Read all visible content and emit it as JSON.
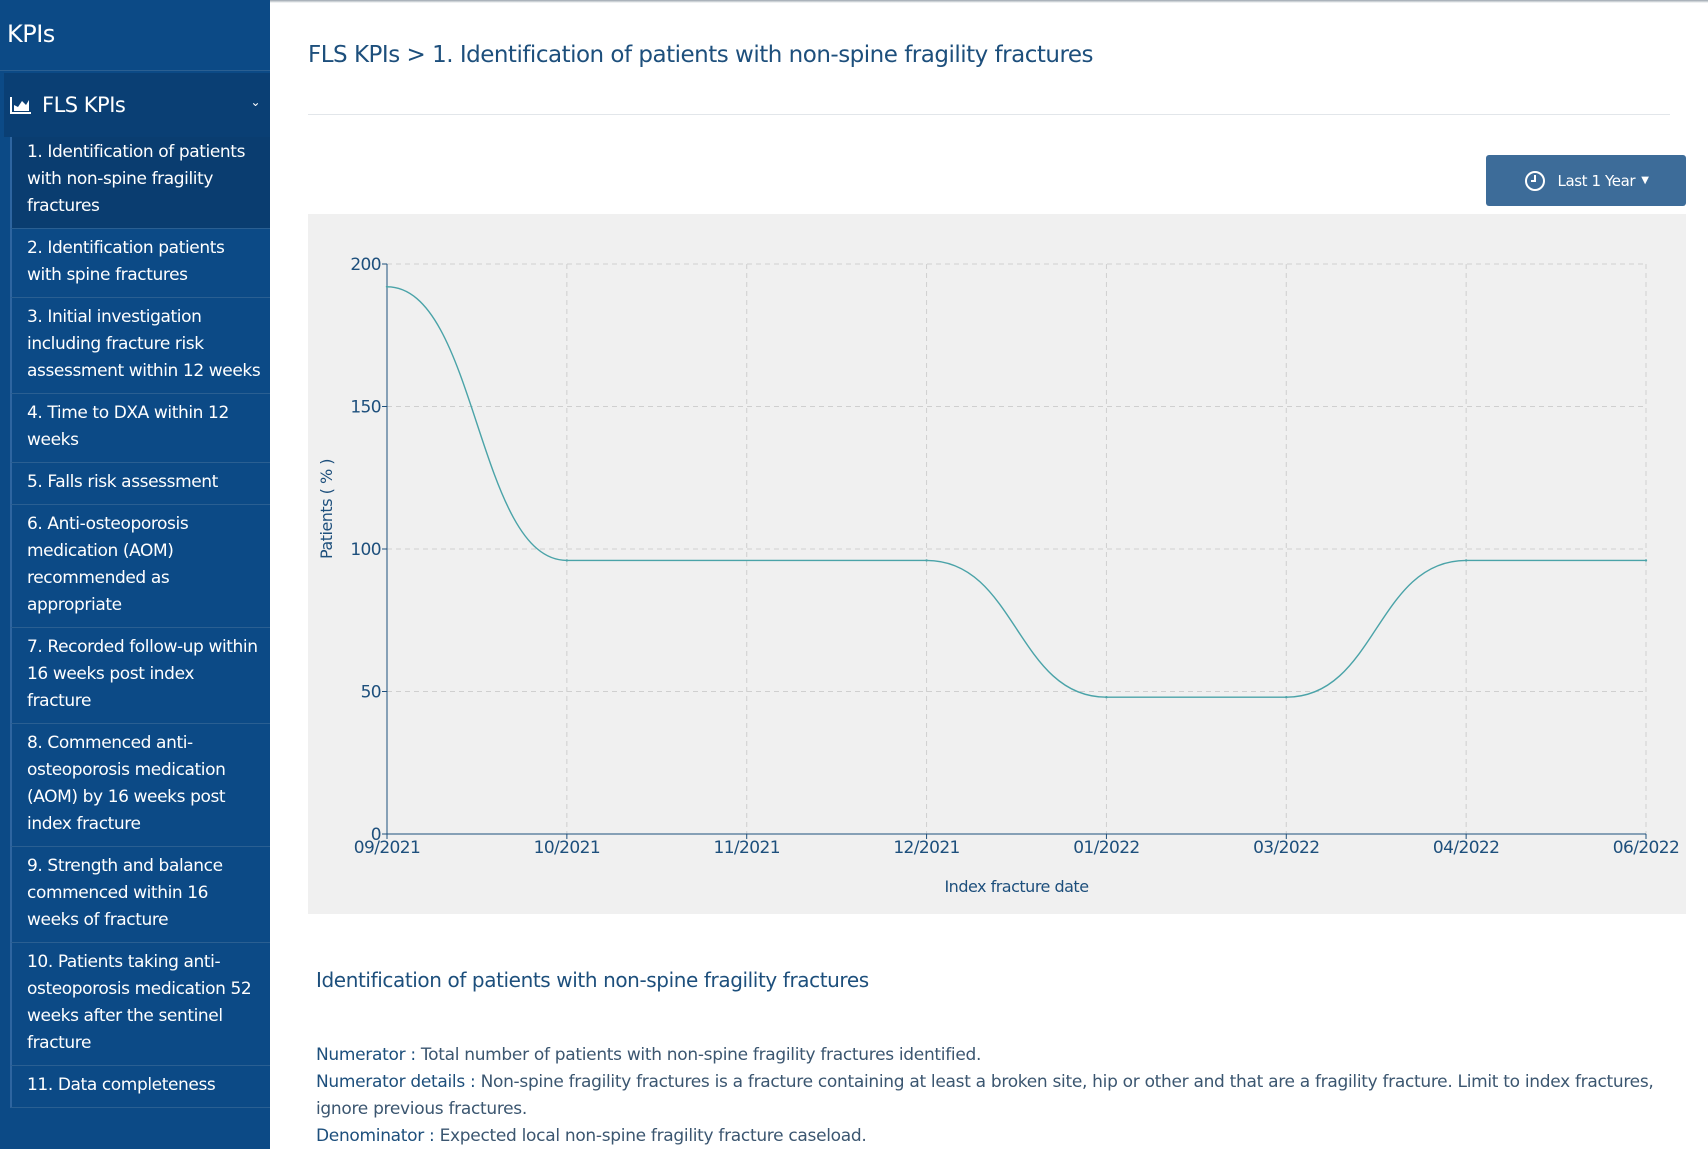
{
  "app": {
    "title": "KPIs"
  },
  "sidebar": {
    "section": {
      "label": "FLS KPIs",
      "icon": "area-chart-icon"
    },
    "items": [
      {
        "label": "1. Identification of patients with non-spine fragility fractures",
        "active": true
      },
      {
        "label": "2. Identification patients with spine fractures"
      },
      {
        "label": "3. Initial investigation including fracture risk assessment within 12 weeks"
      },
      {
        "label": "4. Time to DXA within 12 weeks"
      },
      {
        "label": "5. Falls risk assessment"
      },
      {
        "label": "6. Anti-osteoporosis medication (AOM) recommended as appropriate"
      },
      {
        "label": "7. Recorded follow-up within 16 weeks post index fracture"
      },
      {
        "label": "8. Commenced anti-osteoporosis medication (AOM) by 16 weeks post index fracture"
      },
      {
        "label": "9. Strength and balance commenced within 16 weeks of fracture"
      },
      {
        "label": "10. Patients taking anti-osteoporosis medication 52 weeks after the sentinel fracture"
      },
      {
        "label": "11. Data completeness"
      }
    ]
  },
  "header": {
    "breadcrumb": "FLS KPIs > 1. Identification of patients with non-spine fragility fractures"
  },
  "controls": {
    "period_label": "Last 1 Year",
    "period_icon": "clock-icon"
  },
  "chart_data": {
    "type": "line",
    "xlabel": "Index fracture date",
    "ylabel": "Patients ( % )",
    "ylim": [
      0,
      200
    ],
    "yticks": [
      0,
      50,
      100,
      150,
      200
    ],
    "xticks": [
      "09/2021",
      "10/2021",
      "11/2021",
      "12/2021",
      "01/2022",
      "03/2022",
      "04/2022",
      "06/2022"
    ],
    "grid": true,
    "line_color": "#4aa3a8",
    "series": [
      {
        "x": [
          "09/2021",
          "10/2021",
          "12/2021",
          "01/2022",
          "03/2022",
          "04/2022",
          "06/2022"
        ],
        "values": [
          192,
          96,
          96,
          48,
          48,
          96,
          96
        ]
      }
    ]
  },
  "description": {
    "title": "Identification of patients with non-spine fragility fractures",
    "numerator_label": "Numerator :",
    "numerator": "Total number of patients with non-spine fragility fractures identified.",
    "numerator_details_label": "Numerator details :",
    "numerator_details": "Non-spine fragility fractures is a fracture containing at least a broken site, hip or other and that are a fragility fracture. Limit to index fractures, ignore previous fractures.",
    "denominator_label": "Denominator :",
    "denominator": "Expected local non-spine fragility fracture caseload."
  }
}
